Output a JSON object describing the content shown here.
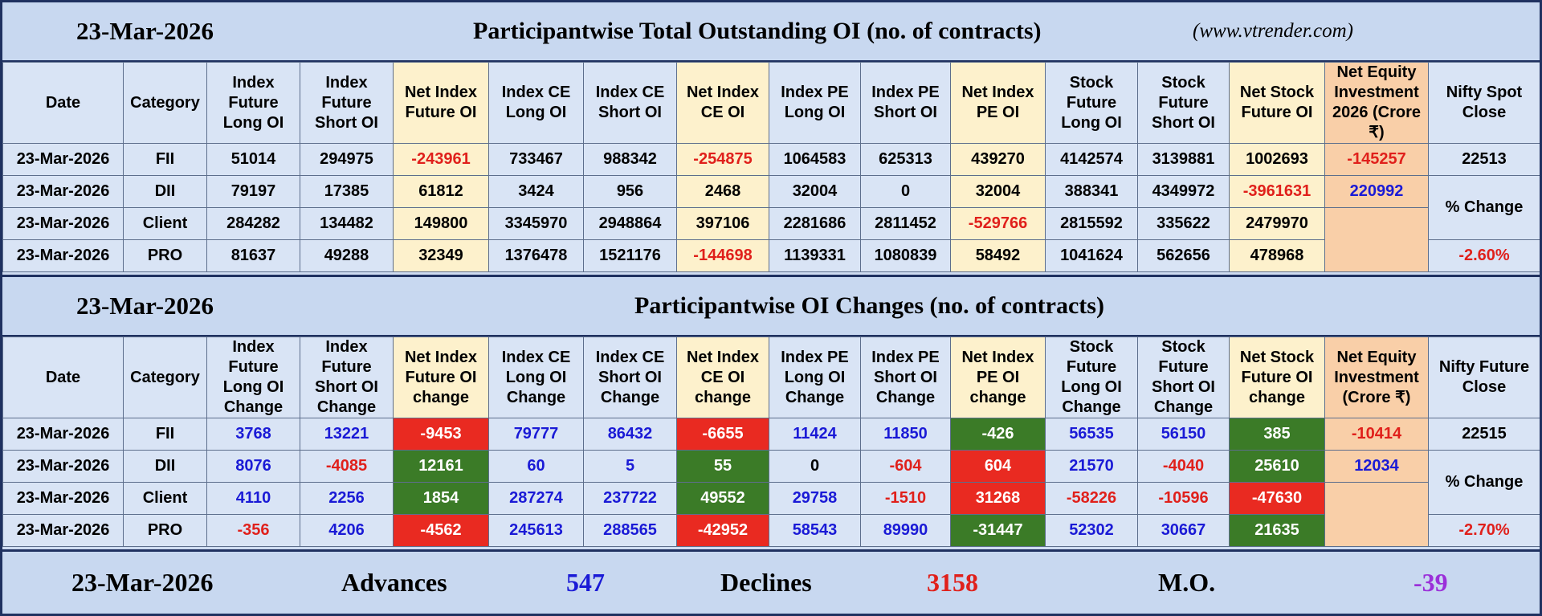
{
  "sections": [
    {
      "date": "23-Mar-2026",
      "title": "Participantwise Total Outstanding OI (no. of contracts)",
      "site": "(www.vtrender.com)",
      "headers": [
        "Date",
        "Category",
        "Index Future Long OI",
        "Index Future Short OI",
        "Net Index Future OI",
        "Index CE Long OI",
        "Index CE Short OI",
        "Net Index CE OI",
        "Index PE Long OI",
        "Index PE Short OI",
        "Net Index PE OI",
        "Stock Future Long OI",
        "Stock Future Short OI",
        "Net Stock Future OI",
        "Net Equity Investment 2026 (Crore ₹)",
        "Nifty Spot Close"
      ],
      "rows": [
        [
          "23-Mar-2026",
          "FII",
          51014,
          294975,
          -243961,
          733467,
          988342,
          -254875,
          1064583,
          625313,
          439270,
          4142574,
          3139881,
          1002693
        ],
        [
          "23-Mar-2026",
          "DII",
          79197,
          17385,
          61812,
          3424,
          956,
          2468,
          32004,
          0,
          32004,
          388341,
          4349972,
          -3961631
        ],
        [
          "23-Mar-2026",
          "Client",
          284282,
          134482,
          149800,
          3345970,
          2948864,
          397106,
          2281686,
          2811452,
          -529766,
          2815592,
          335622,
          2479970
        ],
        [
          "23-Mar-2026",
          "PRO",
          81637,
          49288,
          32349,
          1376478,
          1521176,
          -144698,
          1139331,
          1080839,
          58492,
          1041624,
          562656,
          478968
        ]
      ],
      "net_equity": [
        -145257,
        220992
      ],
      "nifty": {
        "close": 22513,
        "change_label": "% Change",
        "change": "-2.60%"
      }
    },
    {
      "date": "23-Mar-2026",
      "title": "Participantwise OI Changes (no. of contracts)",
      "headers": [
        "Date",
        "Category",
        "Index Future Long OI Change",
        "Index Future Short OI Change",
        "Net Index Future OI change",
        "Index CE Long OI Change",
        "Index CE Short OI Change",
        "Net Index CE OI change",
        "Index PE Long OI Change",
        "Index PE Short OI Change",
        "Net Index PE OI change",
        "Stock Future Long OI Change",
        "Stock Future Short OI Change",
        "Net Stock Future OI change",
        "Net Equity Investment (Crore ₹)",
        "Nifty Future Close"
      ],
      "rows": [
        [
          "23-Mar-2026",
          "FII",
          3768,
          13221,
          -9453,
          79777,
          86432,
          -6655,
          11424,
          11850,
          -426,
          56535,
          56150,
          385
        ],
        [
          "23-Mar-2026",
          "DII",
          8076,
          -4085,
          12161,
          60,
          5,
          55,
          0,
          -604,
          604,
          21570,
          -4040,
          25610
        ],
        [
          "23-Mar-2026",
          "Client",
          4110,
          2256,
          1854,
          287274,
          237722,
          49552,
          29758,
          -1510,
          31268,
          -58226,
          -10596,
          -47630
        ],
        [
          "23-Mar-2026",
          "PRO",
          -356,
          4206,
          -4562,
          245613,
          288565,
          -42952,
          58543,
          89990,
          -31447,
          52302,
          30667,
          21635
        ]
      ],
      "net_equity": [
        -10414,
        12034
      ],
      "nifty": {
        "close": 22515,
        "change_label": "% Change",
        "change": "-2.70%"
      }
    }
  ],
  "footer": {
    "date": "23-Mar-2026",
    "advances_label": "Advances",
    "advances": 547,
    "declines_label": "Declines",
    "declines": 3158,
    "mo_label": "M.O.",
    "mo": -39
  }
}
